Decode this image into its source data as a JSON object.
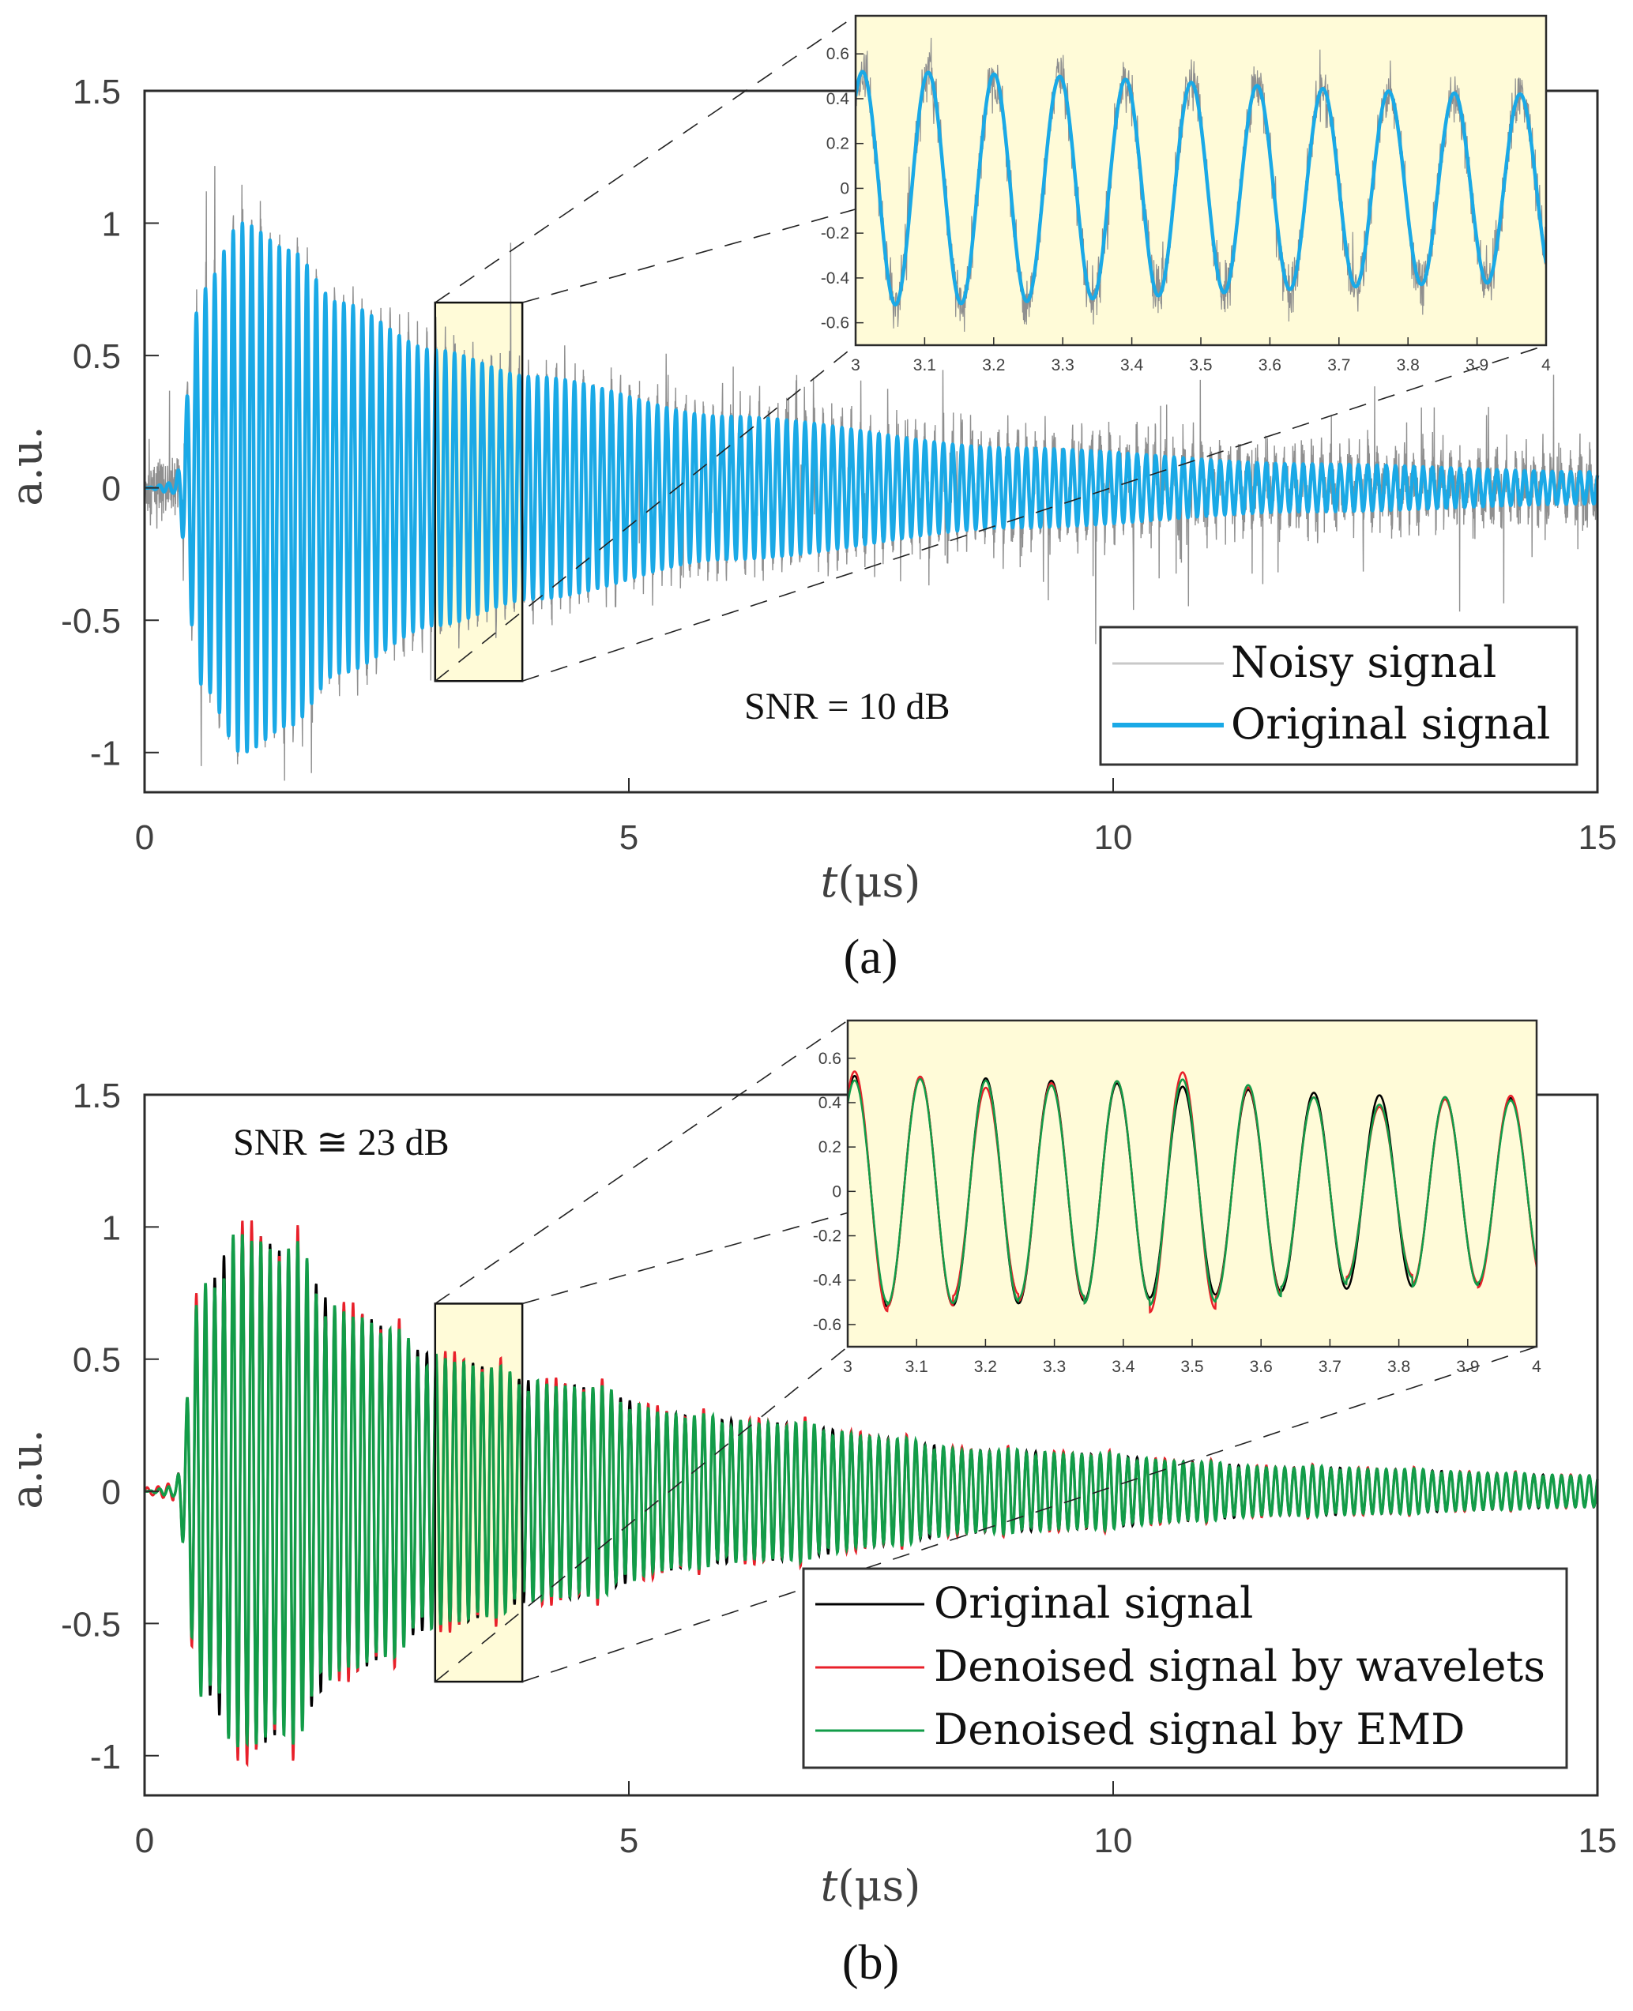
{
  "chart_data": [
    {
      "panel": "(a)",
      "type": "line",
      "xlabel": "t(μs)",
      "ylabel": "a.u.",
      "xlim": [
        0,
        15
      ],
      "ylim": [
        -1.15,
        1.5
      ],
      "xticks": [
        "0",
        "5",
        "10",
        "15"
      ],
      "yticks": [
        "1.5",
        "1",
        "0.5",
        "0",
        "-0.5",
        "-1"
      ],
      "annotation": "SNR = 10 dB",
      "legend": {
        "placement": "bottom-right",
        "entries": [
          "Noisy signal",
          "Original signal"
        ]
      },
      "series": [
        {
          "name": "Noisy signal",
          "color": "#999999",
          "description": "original signal plus white noise, peaks to ~±1.13"
        },
        {
          "name": "Original signal",
          "color": "#1aa9e6",
          "description": "decaying tone burst, onset ~0.3 μs, peak amplitude ~1.0 at t≈1 μs, ~0.5 at t=3 μs, ~0.05 at t=15 μs, frequency ~10.5 MHz"
        }
      ],
      "envelope_points": {
        "t": [
          0,
          0.3,
          0.6,
          1.0,
          1.5,
          2.0,
          3.0,
          4.0,
          6.0,
          9.0,
          12.0,
          15.0
        ],
        "amp": [
          0,
          0.02,
          0.75,
          1.0,
          0.9,
          0.7,
          0.52,
          0.42,
          0.27,
          0.15,
          0.09,
          0.06
        ]
      },
      "frequency_mhz": 10.5,
      "zoom_region": {
        "x": [
          3,
          3.9
        ],
        "y": [
          -0.73,
          0.7
        ]
      },
      "inset": {
        "xlim": [
          3,
          4
        ],
        "ylim": [
          -0.7,
          0.77
        ],
        "xticks": [
          "3",
          "3.1",
          "3.2",
          "3.3",
          "3.4",
          "3.5",
          "3.6",
          "3.7",
          "3.8",
          "3.9",
          "4"
        ],
        "yticks": [
          "0.6",
          "0.4",
          "0.2",
          "0",
          "-0.2",
          "-0.4",
          "-0.6"
        ],
        "background": "#fffbd8"
      }
    },
    {
      "panel": "(b)",
      "type": "line",
      "xlabel": "t(μs)",
      "ylabel": "a.u.",
      "xlim": [
        0,
        15
      ],
      "ylim": [
        -1.15,
        1.5
      ],
      "xticks": [
        "0",
        "5",
        "10",
        "15"
      ],
      "yticks": [
        "1.5",
        "1",
        "0.5",
        "0",
        "-0.5",
        "-1"
      ],
      "annotation": "SNR ≅ 23 dB",
      "legend": {
        "placement": "bottom-right",
        "entries": [
          "Original signal",
          "Denoised signal by wavelets",
          "Denoised signal by EMD"
        ]
      },
      "series": [
        {
          "name": "Original signal",
          "color": "#000000"
        },
        {
          "name": "Denoised signal by wavelets",
          "color": "#e8202a"
        },
        {
          "name": "Denoised signal by EMD",
          "color": "#129c48"
        }
      ],
      "frequency_mhz": 10.5,
      "zoom_region": {
        "x": [
          3,
          3.9
        ],
        "y": [
          -0.72,
          0.71
        ]
      },
      "inset": {
        "xlim": [
          3,
          4
        ],
        "ylim": [
          -0.7,
          0.77
        ],
        "xticks": [
          "3",
          "3.1",
          "3.2",
          "3.3",
          "3.4",
          "3.5",
          "3.6",
          "3.7",
          "3.8",
          "3.9",
          "4"
        ],
        "yticks": [
          "0.6",
          "0.4",
          "0.2",
          "0",
          "-0.2",
          "-0.4",
          "-0.6"
        ],
        "background": "#fffbd8",
        "peaks": {
          "t": [
            3.01,
            3.105,
            3.2,
            3.295,
            3.39,
            3.48,
            3.575,
            3.665,
            3.76,
            3.855,
            3.95
          ],
          "original": [
            0.51,
            0.5,
            0.48,
            0.46,
            0.45,
            0.44,
            0.43,
            0.42,
            0.41,
            0.4,
            0.39
          ],
          "wavelets": [
            0.53,
            0.5,
            0.44,
            0.45,
            0.46,
            0.5,
            0.44,
            0.4,
            0.36,
            0.39,
            0.4
          ],
          "emd": [
            0.49,
            0.49,
            0.47,
            0.44,
            0.46,
            0.47,
            0.45,
            0.4,
            0.37,
            0.4,
            0.38
          ]
        }
      }
    }
  ],
  "labels": {
    "a_ylabel": "a.u.",
    "a_xlabel_t": "t",
    "a_xlabel_unit": "(μs)",
    "a_panel": "(a)",
    "a_snr": "SNR = 10 dB",
    "a_legend_1": "Noisy signal",
    "a_legend_2": "Original signal",
    "b_ylabel": "a.u.",
    "b_xlabel_t": "t",
    "b_xlabel_unit": "(μs)",
    "b_panel": "(b)",
    "b_snr": "SNR ≅ 23 dB",
    "b_legend_1": "Original signal",
    "b_legend_2": "Denoised signal by wavelets",
    "b_legend_3": "Denoised signal by EMD"
  }
}
